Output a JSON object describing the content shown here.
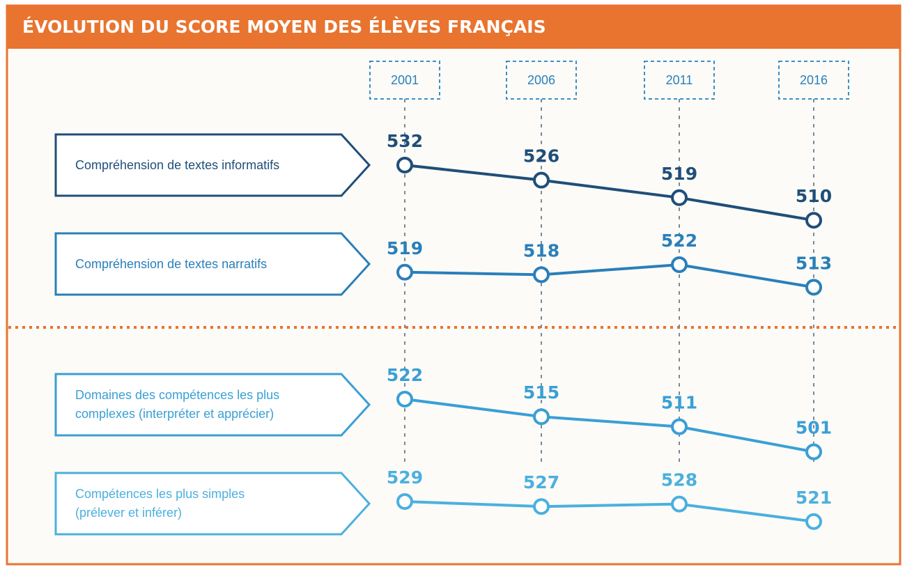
{
  "chart_data": {
    "type": "line",
    "title": "ÉVOLUTION DU SCORE MOYEN DES ÉLÈVES FRANÇAIS",
    "categories": [
      "2001",
      "2006",
      "2011",
      "2016"
    ],
    "series": [
      {
        "name": "Compréhension de textes informatifs",
        "color": "#1f4e79",
        "values": [
          532,
          526,
          519,
          510
        ]
      },
      {
        "name": "Compréhension de textes narratifs",
        "color": "#2a7fba",
        "values": [
          519,
          518,
          522,
          513
        ]
      },
      {
        "name": "Domaines des compétences les plus complexes (interpréter et apprécier)",
        "color": "#3a9fd6",
        "values": [
          522,
          515,
          511,
          501
        ]
      },
      {
        "name": "Compétences les plus simples (prélever et inférer)",
        "color": "#4bb0de",
        "values": [
          529,
          527,
          528,
          521
        ]
      }
    ]
  }
}
